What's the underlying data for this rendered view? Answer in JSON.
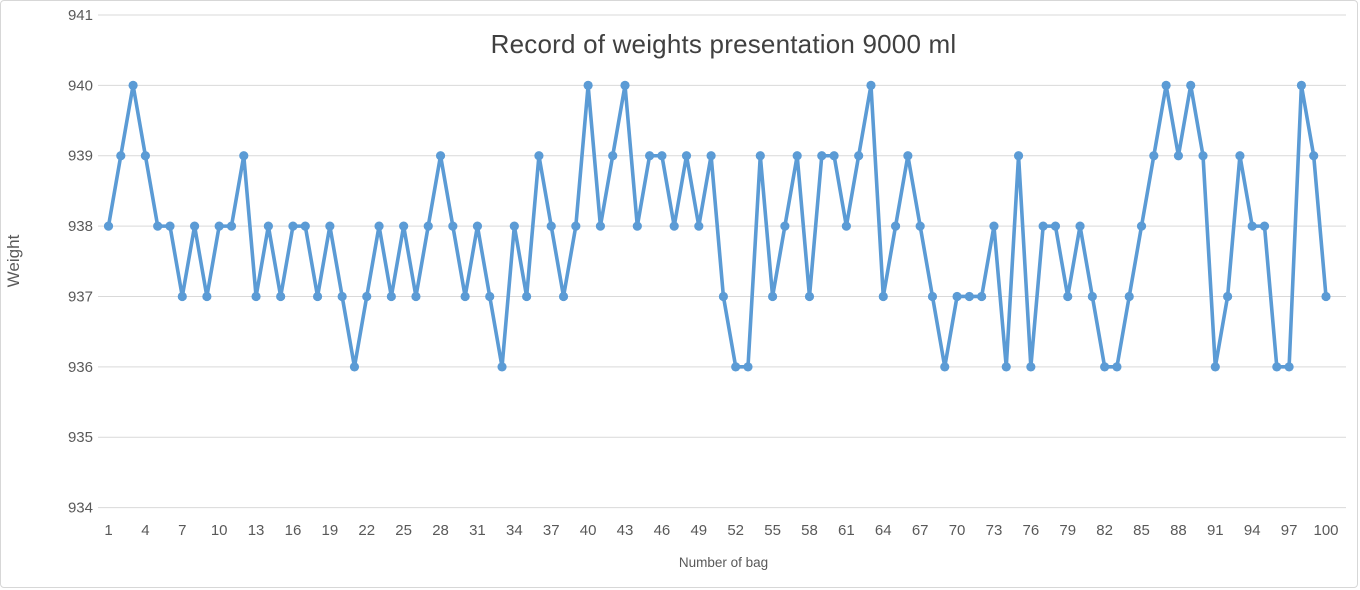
{
  "chart": {
    "title": "Record of weights presentation 9000 ml",
    "xlabel": "Number of bag",
    "ylabel": "Weight"
  },
  "chart_data": {
    "type": "line",
    "title": "Record of weights presentation 9000 ml",
    "xlabel": "Number of bag",
    "ylabel": "Weight",
    "x_start": 1,
    "values": [
      938,
      939,
      940,
      939,
      938,
      938,
      937,
      938,
      937,
      938,
      938,
      939,
      937,
      938,
      937,
      938,
      938,
      937,
      938,
      937,
      936,
      937,
      938,
      937,
      938,
      937,
      938,
      939,
      938,
      937,
      938,
      937,
      936,
      938,
      937,
      939,
      938,
      937,
      938,
      940,
      938,
      939,
      940,
      938,
      939,
      939,
      938,
      939,
      938,
      939,
      937,
      936,
      936,
      939,
      937,
      938,
      939,
      937,
      939,
      939,
      938,
      939,
      940,
      937,
      938,
      939,
      938,
      937,
      936,
      937,
      937,
      937,
      938,
      936,
      939,
      936,
      938,
      938,
      937,
      938,
      937,
      936,
      936,
      937,
      938,
      939,
      940,
      939,
      940,
      939,
      936,
      937,
      939,
      938,
      938,
      936,
      936,
      940,
      939,
      937
    ],
    "ylim": [
      934,
      941
    ],
    "yticks": [
      941,
      940,
      939,
      938,
      937,
      936,
      935,
      934
    ],
    "xticks": [
      1,
      4,
      7,
      10,
      13,
      16,
      19,
      22,
      25,
      28,
      31,
      34,
      37,
      40,
      43,
      46,
      49,
      52,
      55,
      58,
      61,
      64,
      67,
      70,
      73,
      76,
      79,
      82,
      85,
      88,
      91,
      94,
      97,
      100
    ],
    "grid": true,
    "legend": false,
    "line_color": "#5B9BD5",
    "gridline_color": "#D9D9D9",
    "axis_text_color": "#595959",
    "title_color": "#404040"
  }
}
